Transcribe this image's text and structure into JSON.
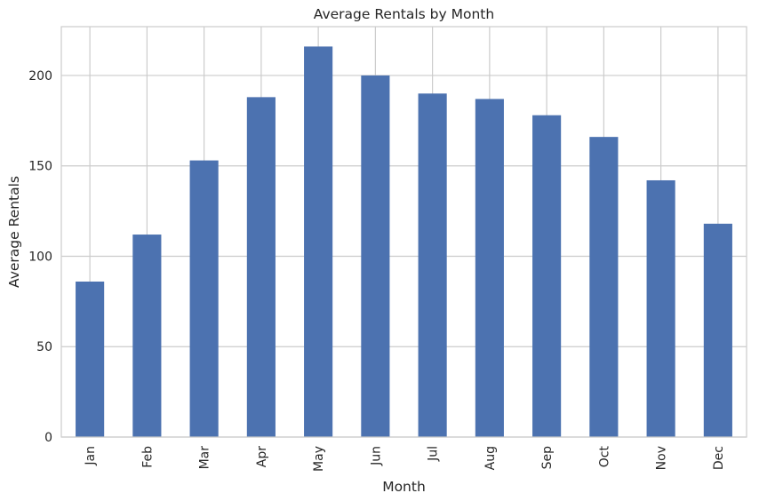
{
  "chart_data": {
    "type": "bar",
    "title": "Average Rentals by Month",
    "xlabel": "Month",
    "ylabel": "Average Rentals",
    "categories": [
      "Jan",
      "Feb",
      "Mar",
      "Apr",
      "May",
      "Jun",
      "Jul",
      "Aug",
      "Sep",
      "Oct",
      "Nov",
      "Dec"
    ],
    "values": [
      86,
      112,
      153,
      188,
      216,
      200,
      190,
      187,
      178,
      166,
      142,
      118
    ],
    "yticks": [
      0,
      50,
      100,
      150,
      200
    ],
    "ylim": [
      0,
      227
    ],
    "grid": true,
    "legend": "none",
    "bar_color": "#4c72b0",
    "grid_color": "#cccccc"
  }
}
